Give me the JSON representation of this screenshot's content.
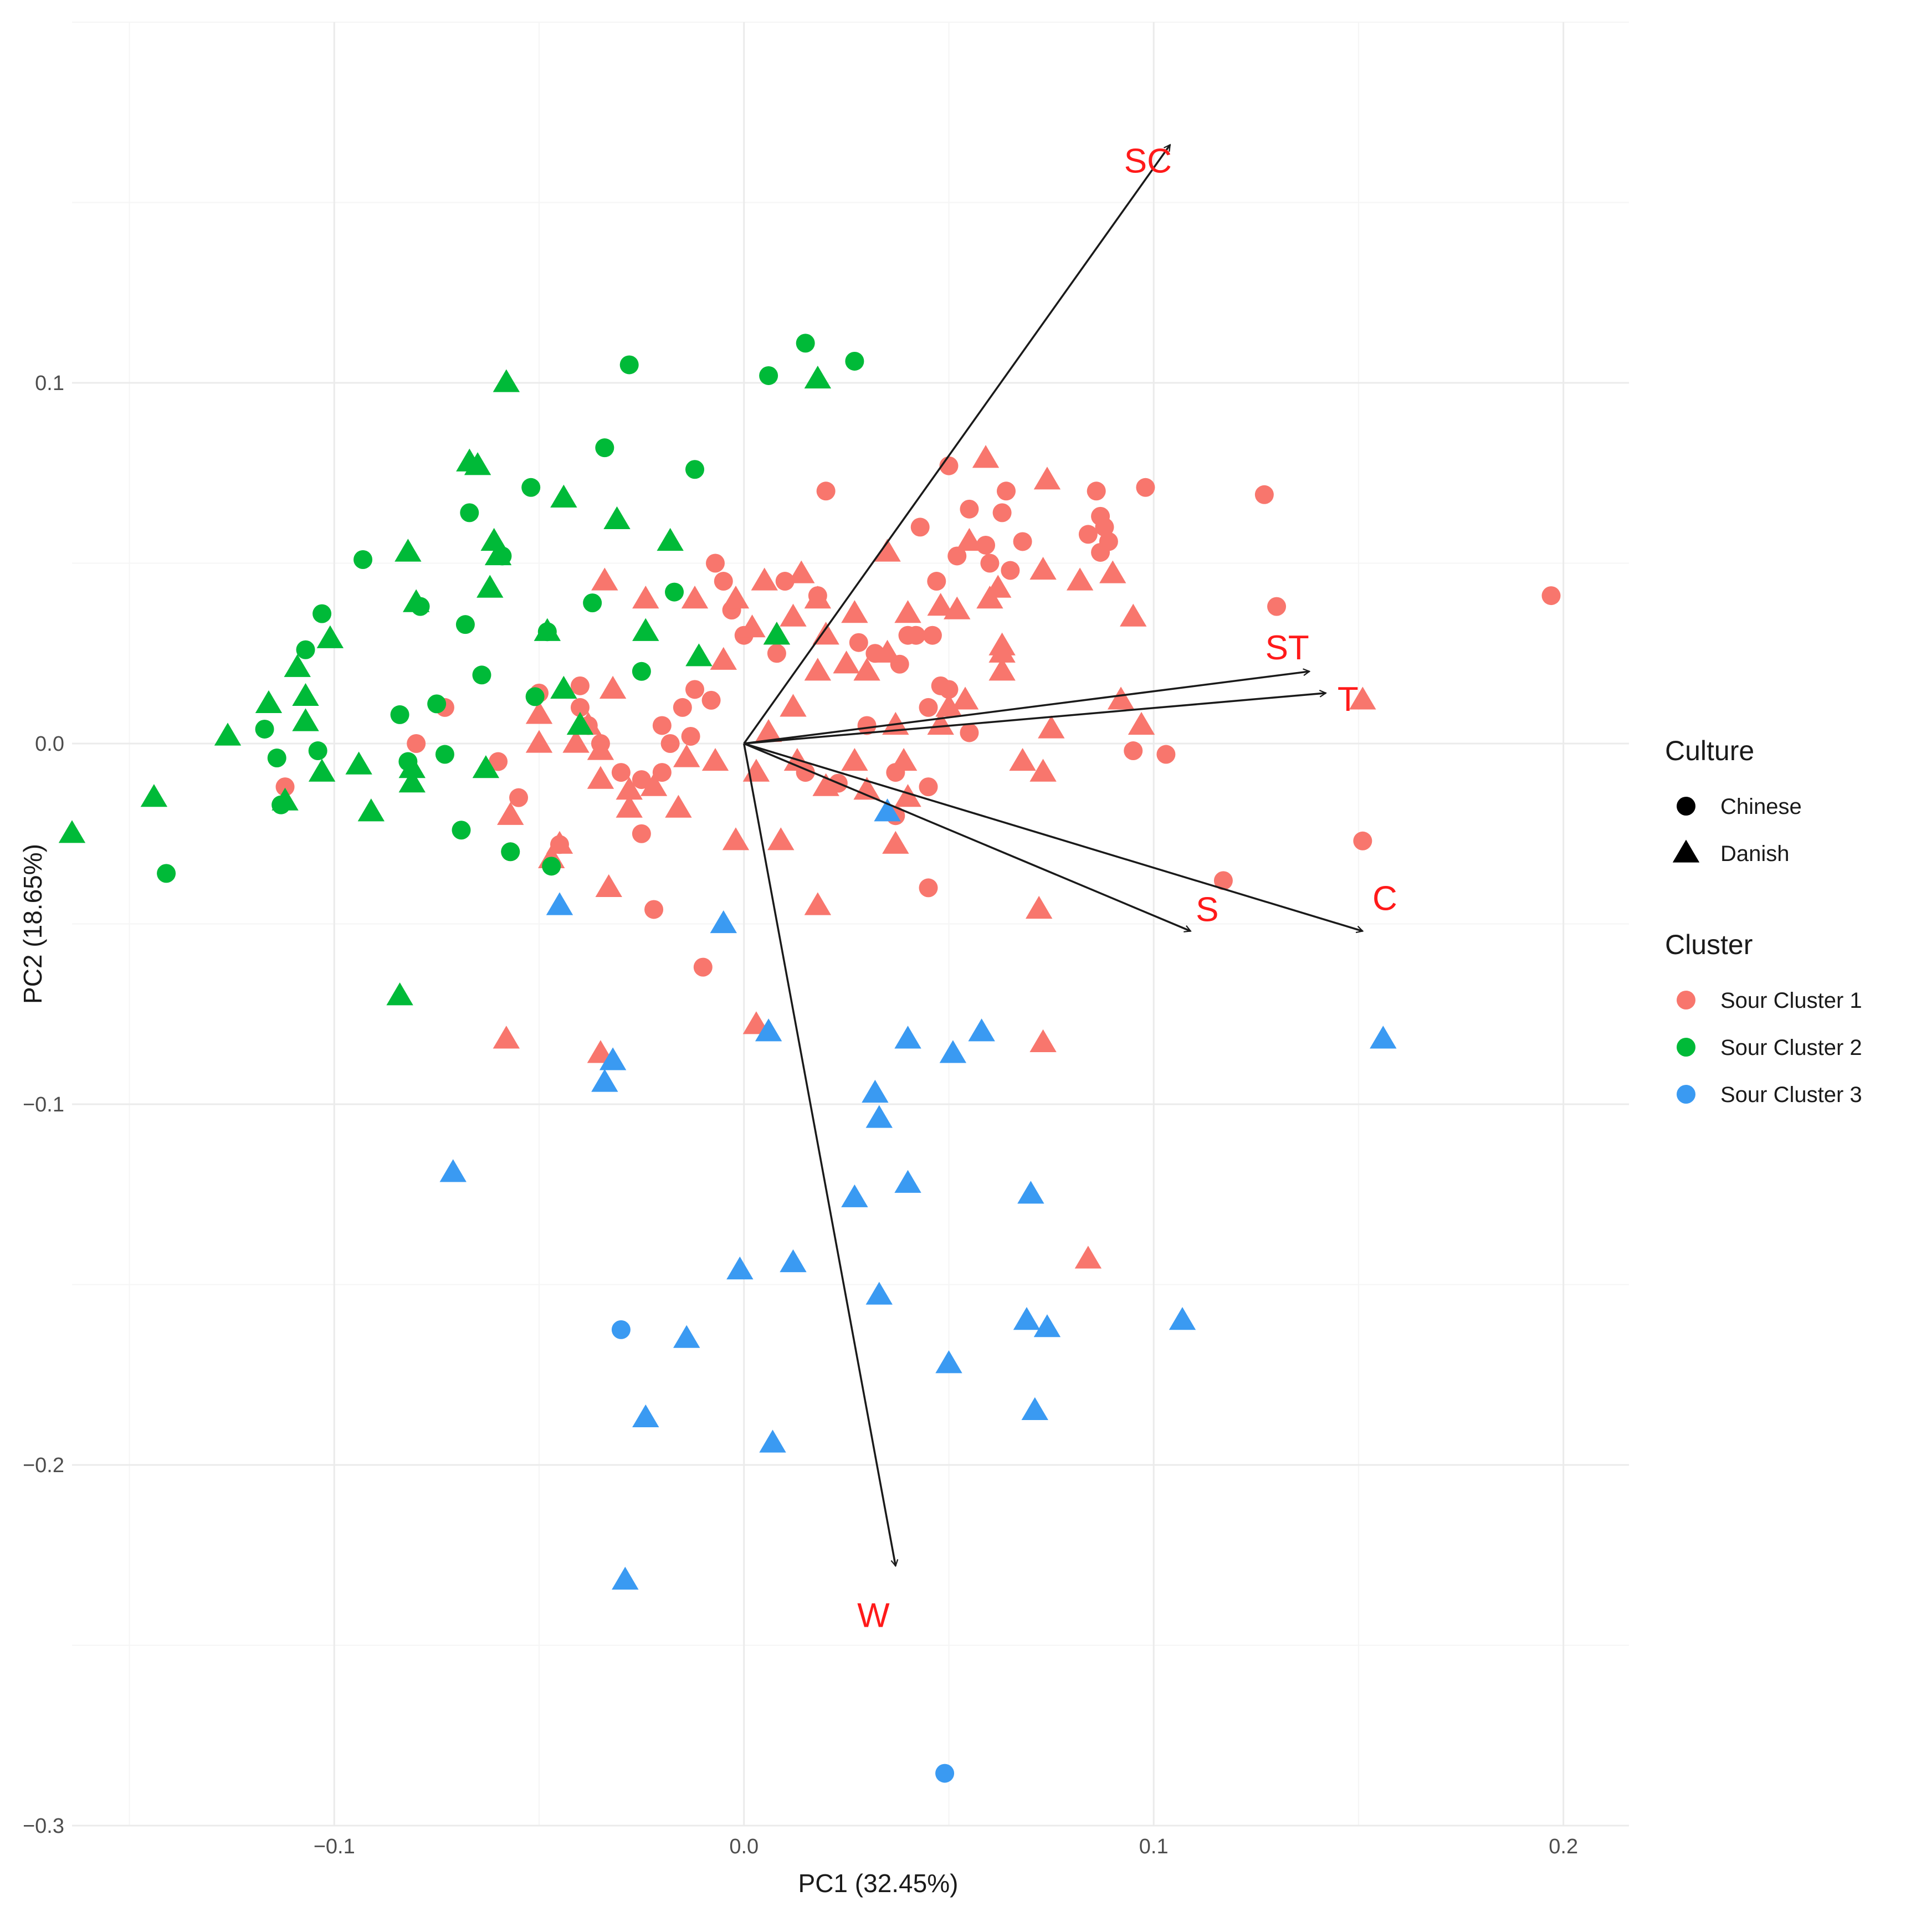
{
  "chart_data": {
    "type": "scatter",
    "title": "",
    "xlabel": "PC1 (32.45%)",
    "ylabel": "PC2 (18.65%)",
    "xlim": [
      -0.164,
      0.216
    ],
    "ylim": [
      -0.3,
      0.2
    ],
    "x_ticks": [
      -0.1,
      0.0,
      0.1,
      0.2
    ],
    "x_tick_labels": [
      "−0.1",
      "0.0",
      "0.1",
      "0.2"
    ],
    "y_ticks": [
      -0.3,
      -0.2,
      -0.1,
      0.0,
      0.1
    ],
    "y_tick_labels": [
      "−0.3",
      "−0.2",
      "−0.1",
      "0.0",
      "0.1"
    ],
    "grid": true,
    "colors": {
      "Sour Cluster 1": "#F8766D",
      "Sour Cluster 2": "#00BA38",
      "Sour Cluster 3": "#3A9AF2",
      "arrow": "#1a1a1a",
      "arrow_label": "#ff1a1a",
      "grid_major": "#ebebeb",
      "grid_minor": "#f5f5f5",
      "axis_text": "#4d4d4d"
    },
    "legend": {
      "placement": "right",
      "culture_title": "Culture",
      "culture_items": [
        {
          "label": "Chinese",
          "shape": "circle"
        },
        {
          "label": "Danish",
          "shape": "triangle"
        }
      ],
      "cluster_title": "Cluster",
      "cluster_items": [
        "Sour Cluster 1",
        "Sour Cluster 2",
        "Sour Cluster 3"
      ]
    },
    "loadings": [
      {
        "label": "SC",
        "x": 0.104,
        "y": 0.166
      },
      {
        "label": "ST",
        "x": 0.138,
        "y": 0.02
      },
      {
        "label": "T",
        "x": 0.142,
        "y": 0.014
      },
      {
        "label": "S",
        "x": 0.109,
        "y": -0.052
      },
      {
        "label": "C",
        "x": 0.151,
        "y": -0.052
      },
      {
        "label": "W",
        "x": 0.037,
        "y": -0.228
      }
    ],
    "series": [
      {
        "name": "Sour Cluster 1 · Chinese",
        "cluster": "Sour Cluster 1",
        "culture": "Chinese",
        "points": [
          [
            0.02,
            0.07
          ],
          [
            0.043,
            0.06
          ],
          [
            0.05,
            0.077
          ],
          [
            0.055,
            0.065
          ],
          [
            0.059,
            0.055
          ],
          [
            0.064,
            0.07
          ],
          [
            0.068,
            0.056
          ],
          [
            0.063,
            0.064
          ],
          [
            0.06,
            0.05
          ],
          [
            0.065,
            0.048
          ],
          [
            0.084,
            0.058
          ],
          [
            0.087,
            0.063
          ],
          [
            0.088,
            0.06
          ],
          [
            0.089,
            0.056
          ],
          [
            0.087,
            0.053
          ],
          [
            0.086,
            0.07
          ],
          [
            0.098,
            0.071
          ],
          [
            0.127,
            0.069
          ],
          [
            0.13,
            0.038
          ],
          [
            0.197,
            0.041
          ],
          [
            0.047,
            0.045
          ],
          [
            0.052,
            0.052
          ],
          [
            0.042,
            0.03
          ],
          [
            0.046,
            0.03
          ],
          [
            0.048,
            0.016
          ],
          [
            0.018,
            0.041
          ],
          [
            0.01,
            0.045
          ],
          [
            -0.007,
            0.05
          ],
          [
            -0.005,
            0.045
          ],
          [
            -0.003,
            0.037
          ],
          [
            0.0,
            0.03
          ],
          [
            0.008,
            0.025
          ],
          [
            0.028,
            0.028
          ],
          [
            0.032,
            0.025
          ],
          [
            0.038,
            0.022
          ],
          [
            0.04,
            0.03
          ],
          [
            0.045,
            0.01
          ],
          [
            0.05,
            0.015
          ],
          [
            0.055,
            0.003
          ],
          [
            0.03,
            0.005
          ],
          [
            -0.008,
            0.012
          ],
          [
            -0.012,
            0.015
          ],
          [
            -0.015,
            0.01
          ],
          [
            -0.013,
            0.002
          ],
          [
            -0.02,
            0.005
          ],
          [
            -0.018,
            0.0
          ],
          [
            -0.02,
            -0.008
          ],
          [
            -0.025,
            -0.01
          ],
          [
            -0.025,
            -0.025
          ],
          [
            -0.03,
            -0.008
          ],
          [
            -0.035,
            0.0
          ],
          [
            -0.04,
            0.01
          ],
          [
            -0.038,
            0.005
          ],
          [
            -0.045,
            -0.028
          ],
          [
            -0.05,
            0.014
          ],
          [
            -0.055,
            -0.015
          ],
          [
            -0.06,
            -0.005
          ],
          [
            -0.057,
            -0.03
          ],
          [
            -0.073,
            0.01
          ],
          [
            -0.08,
            0.0
          ],
          [
            -0.112,
            -0.012
          ],
          [
            0.015,
            -0.008
          ],
          [
            0.023,
            -0.011
          ],
          [
            0.037,
            -0.008
          ],
          [
            0.045,
            -0.012
          ],
          [
            0.037,
            -0.02
          ],
          [
            0.045,
            -0.04
          ],
          [
            0.095,
            -0.002
          ],
          [
            0.103,
            -0.003
          ],
          [
            0.117,
            -0.038
          ],
          [
            0.151,
            -0.027
          ],
          [
            -0.01,
            -0.062
          ],
          [
            -0.022,
            -0.046
          ],
          [
            -0.04,
            0.016
          ]
        ]
      },
      {
        "name": "Sour Cluster 1 · Danish",
        "cluster": "Sour Cluster 1",
        "culture": "Danish",
        "points": [
          [
            0.059,
            0.079
          ],
          [
            0.074,
            0.073
          ],
          [
            0.035,
            0.053
          ],
          [
            0.055,
            0.056
          ],
          [
            0.048,
            0.038
          ],
          [
            0.062,
            0.043
          ],
          [
            0.06,
            0.04
          ],
          [
            0.073,
            0.048
          ],
          [
            0.082,
            0.045
          ],
          [
            0.09,
            0.047
          ],
          [
            0.095,
            0.035
          ],
          [
            0.063,
            0.027
          ],
          [
            0.063,
            0.02
          ],
          [
            0.04,
            0.036
          ],
          [
            0.027,
            0.036
          ],
          [
            0.014,
            0.047
          ],
          [
            0.005,
            0.045
          ],
          [
            0.018,
            0.04
          ],
          [
            0.012,
            0.035
          ],
          [
            0.002,
            0.032
          ],
          [
            0.008,
            0.03
          ],
          [
            -0.012,
            0.04
          ],
          [
            -0.002,
            0.04
          ],
          [
            -0.005,
            0.023
          ],
          [
            0.018,
            0.02
          ],
          [
            0.02,
            0.03
          ],
          [
            0.03,
            0.02
          ],
          [
            0.025,
            0.022
          ],
          [
            0.035,
            0.025
          ],
          [
            0.05,
            0.01
          ],
          [
            0.048,
            0.005
          ],
          [
            0.054,
            0.012
          ],
          [
            0.037,
            0.005
          ],
          [
            0.012,
            0.01
          ],
          [
            0.006,
            0.003
          ],
          [
            0.075,
            0.004
          ],
          [
            0.092,
            0.012
          ],
          [
            0.097,
            0.005
          ],
          [
            -0.007,
            -0.005
          ],
          [
            0.003,
            -0.008
          ],
          [
            0.013,
            -0.005
          ],
          [
            0.02,
            -0.012
          ],
          [
            0.027,
            -0.005
          ],
          [
            0.03,
            -0.013
          ],
          [
            0.04,
            -0.015
          ],
          [
            0.068,
            -0.005
          ],
          [
            0.073,
            -0.008
          ],
          [
            0.151,
            0.012
          ],
          [
            -0.022,
            -0.012
          ],
          [
            -0.028,
            -0.013
          ],
          [
            -0.028,
            -0.018
          ],
          [
            -0.038,
            0.005
          ],
          [
            -0.035,
            -0.002
          ],
          [
            -0.035,
            -0.01
          ],
          [
            -0.05,
            0.008
          ],
          [
            -0.05,
            0.0
          ],
          [
            -0.057,
            -0.02
          ],
          [
            -0.045,
            -0.028
          ],
          [
            -0.033,
            -0.04
          ],
          [
            -0.016,
            -0.018
          ],
          [
            -0.014,
            -0.004
          ],
          [
            -0.032,
            0.015
          ],
          [
            -0.024,
            0.04
          ],
          [
            -0.034,
            0.045
          ],
          [
            -0.002,
            -0.027
          ],
          [
            0.009,
            -0.027
          ],
          [
            0.018,
            -0.045
          ],
          [
            0.037,
            -0.028
          ],
          [
            0.072,
            -0.046
          ],
          [
            0.073,
            -0.083
          ],
          [
            0.084,
            -0.143
          ],
          [
            0.003,
            -0.078
          ],
          [
            -0.058,
            -0.082
          ],
          [
            -0.035,
            -0.086
          ],
          [
            0.039,
            -0.005
          ],
          [
            0.063,
            0.025
          ],
          [
            0.052,
            0.037
          ],
          [
            -0.041,
            0.0
          ],
          [
            -0.047,
            -0.032
          ]
        ]
      },
      {
        "name": "Sour Cluster 2 · Chinese",
        "cluster": "Sour Cluster 2",
        "culture": "Chinese",
        "points": [
          [
            -0.028,
            0.105
          ],
          [
            0.006,
            0.102
          ],
          [
            0.015,
            0.111
          ],
          [
            0.027,
            0.106
          ],
          [
            -0.034,
            0.082
          ],
          [
            -0.012,
            0.076
          ],
          [
            -0.052,
            0.071
          ],
          [
            -0.067,
            0.064
          ],
          [
            -0.059,
            0.052
          ],
          [
            -0.093,
            0.051
          ],
          [
            -0.079,
            0.038
          ],
          [
            -0.103,
            0.036
          ],
          [
            -0.068,
            0.033
          ],
          [
            -0.107,
            0.026
          ],
          [
            -0.064,
            0.019
          ],
          [
            -0.017,
            0.042
          ],
          [
            -0.037,
            0.039
          ],
          [
            -0.048,
            0.031
          ],
          [
            -0.025,
            0.02
          ],
          [
            -0.051,
            0.013
          ],
          [
            -0.075,
            0.011
          ],
          [
            -0.084,
            0.008
          ],
          [
            -0.117,
            0.004
          ],
          [
            -0.114,
            -0.004
          ],
          [
            -0.104,
            -0.002
          ],
          [
            -0.082,
            -0.005
          ],
          [
            -0.073,
            -0.003
          ],
          [
            -0.113,
            -0.017
          ],
          [
            -0.069,
            -0.024
          ],
          [
            -0.057,
            -0.03
          ],
          [
            -0.047,
            -0.034
          ],
          [
            -0.141,
            -0.036
          ]
        ]
      },
      {
        "name": "Sour Cluster 2 · Danish",
        "cluster": "Sour Cluster 2",
        "culture": "Danish",
        "points": [
          [
            -0.058,
            0.1
          ],
          [
            0.018,
            0.101
          ],
          [
            -0.067,
            0.078
          ],
          [
            -0.065,
            0.077
          ],
          [
            -0.044,
            0.068
          ],
          [
            -0.031,
            0.062
          ],
          [
            -0.018,
            0.056
          ],
          [
            -0.061,
            0.056
          ],
          [
            -0.06,
            0.052
          ],
          [
            -0.082,
            0.053
          ],
          [
            -0.062,
            0.043
          ],
          [
            -0.08,
            0.039
          ],
          [
            -0.048,
            0.031
          ],
          [
            -0.024,
            0.031
          ],
          [
            -0.101,
            0.029
          ],
          [
            -0.011,
            0.024
          ],
          [
            -0.109,
            0.021
          ],
          [
            -0.044,
            0.015
          ],
          [
            -0.107,
            0.013
          ],
          [
            -0.116,
            0.011
          ],
          [
            -0.107,
            0.006
          ],
          [
            -0.126,
            0.002
          ],
          [
            -0.04,
            0.005
          ],
          [
            -0.094,
            -0.006
          ],
          [
            -0.081,
            -0.007
          ],
          [
            -0.103,
            -0.008
          ],
          [
            -0.063,
            -0.007
          ],
          [
            -0.081,
            -0.011
          ],
          [
            -0.112,
            -0.016
          ],
          [
            -0.091,
            -0.019
          ],
          [
            -0.144,
            -0.015
          ],
          [
            -0.164,
            -0.025
          ],
          [
            -0.084,
            -0.07
          ],
          [
            0.008,
            0.03
          ]
        ]
      },
      {
        "name": "Sour Cluster 3 · Chinese",
        "cluster": "Sour Cluster 3",
        "culture": "Chinese",
        "points": [
          [
            -0.03,
            -0.1625
          ],
          [
            0.049,
            -0.2855
          ]
        ]
      },
      {
        "name": "Sour Cluster 3 · Danish",
        "cluster": "Sour Cluster 3",
        "culture": "Danish",
        "points": [
          [
            -0.045,
            -0.045
          ],
          [
            0.035,
            -0.019
          ],
          [
            -0.005,
            -0.05
          ],
          [
            0.006,
            -0.08
          ],
          [
            0.04,
            -0.082
          ],
          [
            0.058,
            -0.08
          ],
          [
            0.051,
            -0.086
          ],
          [
            0.156,
            -0.082
          ],
          [
            -0.032,
            -0.088
          ],
          [
            -0.034,
            -0.094
          ],
          [
            0.032,
            -0.097
          ],
          [
            0.033,
            -0.104
          ],
          [
            -0.071,
            -0.119
          ],
          [
            0.04,
            -0.122
          ],
          [
            0.027,
            -0.126
          ],
          [
            0.07,
            -0.125
          ],
          [
            -0.001,
            -0.146
          ],
          [
            0.012,
            -0.144
          ],
          [
            0.033,
            -0.153
          ],
          [
            -0.014,
            -0.165
          ],
          [
            0.069,
            -0.16
          ],
          [
            0.074,
            -0.162
          ],
          [
            0.107,
            -0.16
          ],
          [
            0.05,
            -0.172
          ],
          [
            -0.024,
            -0.187
          ],
          [
            0.071,
            -0.185
          ],
          [
            0.007,
            -0.194
          ],
          [
            -0.029,
            -0.232
          ]
        ]
      }
    ]
  }
}
